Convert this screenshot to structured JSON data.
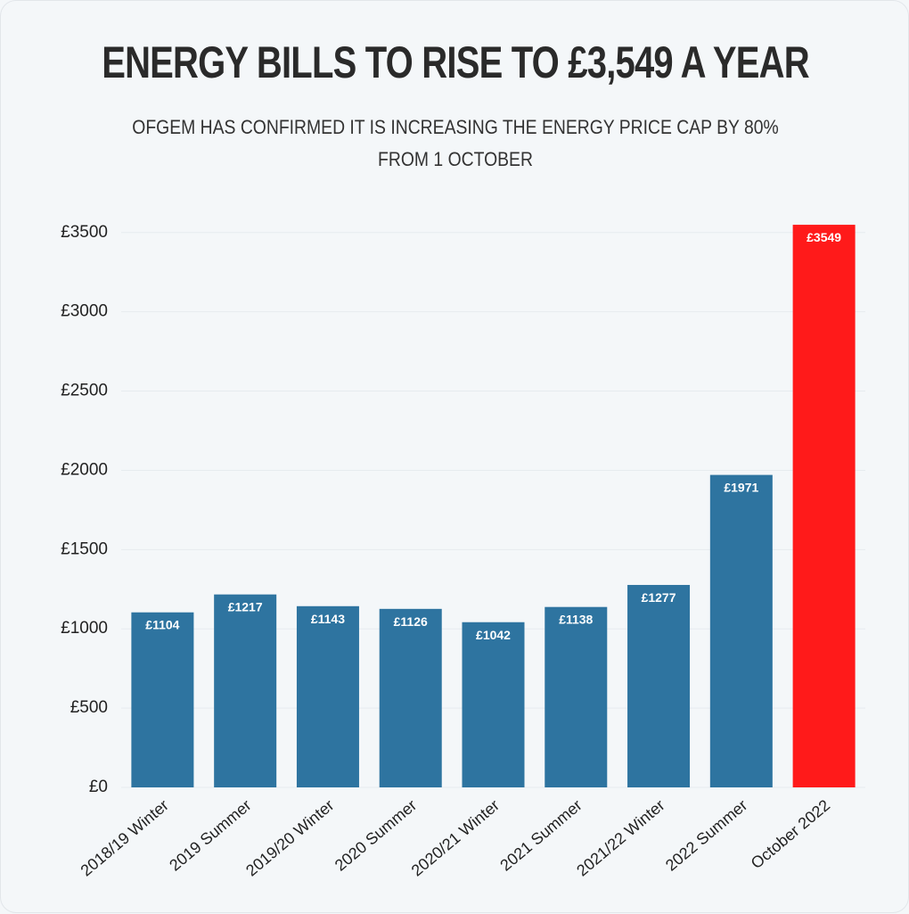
{
  "chart_data": {
    "type": "bar",
    "title": "ENERGY BILLS TO RISE TO £3,549 A YEAR",
    "subtitle": "OFGEM HAS CONFIRMED IT IS INCREASING THE ENERGY PRICE CAP BY 80% FROM 1 OCTOBER",
    "categories": [
      "2018/19 Winter",
      "2019 Summer",
      "2019/20 Winter",
      "2020 Summer",
      "2020/21 Winter",
      "2021 Summer",
      "2021/22 Winter",
      "2022 Summer",
      "October 2022"
    ],
    "values": [
      1104,
      1217,
      1143,
      1126,
      1042,
      1138,
      1277,
      1971,
      3549
    ],
    "value_labels": [
      "£1104",
      "£1217",
      "£1143",
      "£1126",
      "£1042",
      "£1138",
      "£1277",
      "£1971",
      "£3549"
    ],
    "colors": [
      "#2e74a0",
      "#2e74a0",
      "#2e74a0",
      "#2e74a0",
      "#2e74a0",
      "#2e74a0",
      "#2e74a0",
      "#2e74a0",
      "#ff1a1a"
    ],
    "ylim": [
      0,
      3600
    ],
    "yticks": [
      {
        "value": 0,
        "label": "£0"
      },
      {
        "value": 500,
        "label": "£500"
      },
      {
        "value": 1000,
        "label": "£1000"
      },
      {
        "value": 1500,
        "label": "£1500"
      },
      {
        "value": 2000,
        "label": "£2000"
      },
      {
        "value": 2500,
        "label": "£2500"
      },
      {
        "value": 3000,
        "label": "£3000"
      },
      {
        "value": 3500,
        "label": "£3500"
      }
    ],
    "grid": true
  }
}
